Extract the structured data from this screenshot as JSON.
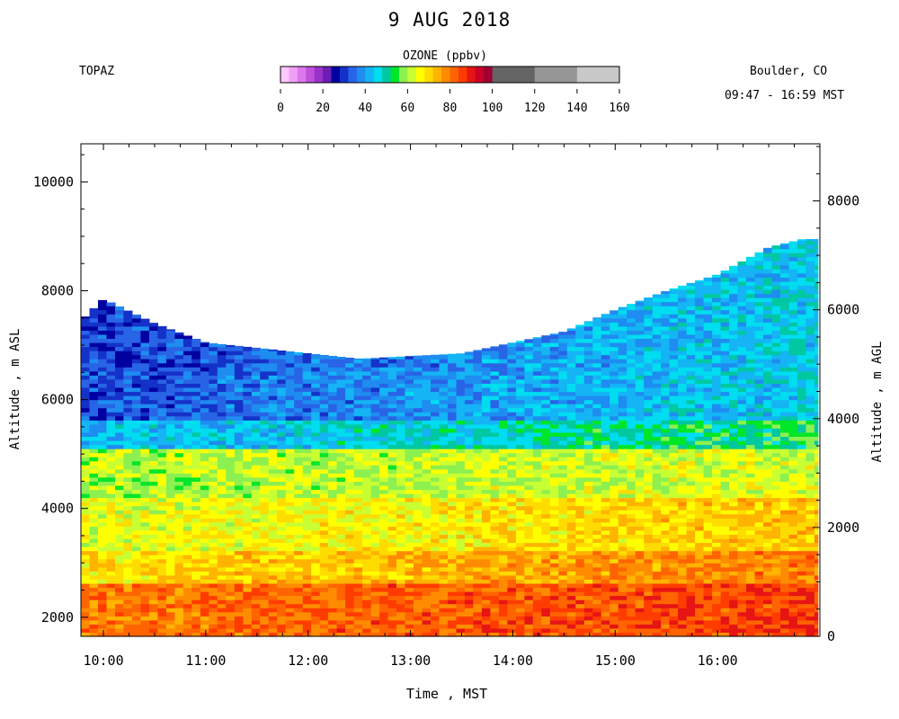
{
  "header": {
    "title": "9 AUG 2018",
    "instrument": "TOPAZ",
    "location": "Boulder, CO",
    "time_range": "09:47 - 16:59 MST"
  },
  "colorbar": {
    "title": "OZONE (ppbv)",
    "ticks": [
      "0",
      "20",
      "40",
      "60",
      "80",
      "100",
      "120",
      "140",
      "160"
    ],
    "range": [
      0,
      160
    ],
    "bins": [
      {
        "from": 0,
        "to": 4,
        "color": "#ffc8ff"
      },
      {
        "from": 4,
        "to": 8,
        "color": "#f0a0f5"
      },
      {
        "from": 8,
        "to": 12,
        "color": "#dc78eb"
      },
      {
        "from": 12,
        "to": 16,
        "color": "#c050dc"
      },
      {
        "from": 16,
        "to": 20,
        "color": "#9a32c8"
      },
      {
        "from": 20,
        "to": 24,
        "color": "#6a1eb4"
      },
      {
        "from": 24,
        "to": 28,
        "color": "#0000a0"
      },
      {
        "from": 28,
        "to": 32,
        "color": "#1432c8"
      },
      {
        "from": 32,
        "to": 36,
        "color": "#2864e6"
      },
      {
        "from": 36,
        "to": 40,
        "color": "#1e8cf0"
      },
      {
        "from": 40,
        "to": 44,
        "color": "#14b4f5"
      },
      {
        "from": 44,
        "to": 48,
        "color": "#00dcf0"
      },
      {
        "from": 48,
        "to": 52,
        "color": "#00c8a0"
      },
      {
        "from": 52,
        "to": 56,
        "color": "#00e628"
      },
      {
        "from": 56,
        "to": 60,
        "color": "#8cf050"
      },
      {
        "from": 60,
        "to": 64,
        "color": "#c8ff32"
      },
      {
        "from": 64,
        "to": 68,
        "color": "#ffff00"
      },
      {
        "from": 68,
        "to": 72,
        "color": "#ffdc00"
      },
      {
        "from": 72,
        "to": 76,
        "color": "#ffb400"
      },
      {
        "from": 76,
        "to": 80,
        "color": "#ff8c00"
      },
      {
        "from": 80,
        "to": 84,
        "color": "#ff6400"
      },
      {
        "from": 84,
        "to": 88,
        "color": "#ff3c00"
      },
      {
        "from": 88,
        "to": 92,
        "color": "#e61414"
      },
      {
        "from": 92,
        "to": 96,
        "color": "#c80028"
      },
      {
        "from": 96,
        "to": 100,
        "color": "#a00032"
      },
      {
        "from": 100,
        "to": 120,
        "color": "#646464"
      },
      {
        "from": 120,
        "to": 140,
        "color": "#969696"
      },
      {
        "from": 140,
        "to": 160,
        "color": "#c8c8c8"
      }
    ]
  },
  "chart_data": {
    "type": "heatmap",
    "xlabel": "Time , MST",
    "ylabel_left": "Altitude , m ASL",
    "ylabel_right": "Altitude , m AGL",
    "x_range_hours": [
      9.78,
      17.0
    ],
    "x_ticks": [
      "10:00",
      "11:00",
      "12:00",
      "13:00",
      "14:00",
      "15:00",
      "16:00"
    ],
    "y_left_range": [
      1650,
      10700
    ],
    "y_left_ticks": [
      2000,
      4000,
      6000,
      8000,
      10000
    ],
    "y_right_ticks": [
      0,
      2000,
      4000,
      6000,
      8000
    ],
    "agl_offset_m": 1650,
    "data_start_hour": 9.78,
    "data_end_hour": 16.98,
    "profile_top_m": [
      {
        "t": 9.78,
        "top": 7450
      },
      {
        "t": 10.0,
        "top": 7850
      },
      {
        "t": 10.5,
        "top": 7400
      },
      {
        "t": 11.0,
        "top": 7050
      },
      {
        "t": 11.5,
        "top": 6950
      },
      {
        "t": 12.0,
        "top": 6850
      },
      {
        "t": 12.5,
        "top": 6750
      },
      {
        "t": 13.0,
        "top": 6800
      },
      {
        "t": 13.5,
        "top": 6850
      },
      {
        "t": 14.0,
        "top": 7050
      },
      {
        "t": 14.5,
        "top": 7250
      },
      {
        "t": 15.0,
        "top": 7650
      },
      {
        "t": 15.5,
        "top": 8000
      },
      {
        "t": 16.0,
        "top": 8300
      },
      {
        "t": 16.5,
        "top": 8800
      },
      {
        "t": 16.83,
        "top": 8950
      }
    ],
    "ozone_layers_ppbv": [
      {
        "base_m": 1650,
        "top_m": 2600,
        "start_ppbv": 80,
        "end_ppbv": 86
      },
      {
        "base_m": 2600,
        "top_m": 3200,
        "start_ppbv": 68,
        "end_ppbv": 80
      },
      {
        "base_m": 3200,
        "top_m": 4200,
        "start_ppbv": 64,
        "end_ppbv": 72
      },
      {
        "base_m": 4200,
        "top_m": 5100,
        "start_ppbv": 60,
        "end_ppbv": 64
      },
      {
        "base_m": 5100,
        "top_m": 5600,
        "start_ppbv": 42,
        "end_ppbv": 54
      },
      {
        "base_m": 5600,
        "top_m": 6500,
        "start_ppbv": 32,
        "end_ppbv": 46
      },
      {
        "base_m": 6500,
        "top_m": 9000,
        "start_ppbv": 30,
        "end_ppbv": 46
      }
    ],
    "grid": false,
    "legend": "colorbar-top"
  }
}
